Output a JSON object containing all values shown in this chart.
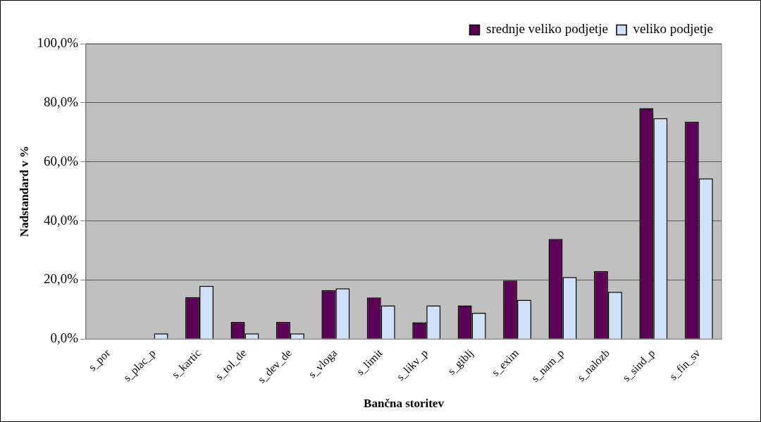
{
  "chart_data": {
    "type": "bar",
    "xlabel": "Bančna storitev",
    "ylabel": "Nadstandard v %",
    "categories": [
      "s_por",
      "s_plac_p",
      "s_kartic",
      "s_tol_de",
      "s_dev_de",
      "s_vloga",
      "s_limit",
      "s_likv_p",
      "s_giblj",
      "s_exim",
      "s_nam_p",
      "s_nalozb",
      "s_sind_p",
      "s_fin_sv"
    ],
    "series": [
      {
        "name": "srednje veliko podjetje",
        "color": "#5c0057",
        "values": [
          0,
          0,
          14.2,
          5.8,
          5.8,
          16.6,
          14.1,
          5.7,
          11.4,
          19.8,
          33.9,
          23.0,
          78.2,
          73.6
        ]
      },
      {
        "name": "veliko podjetje",
        "color": "#d0e0f8",
        "values": [
          0,
          1.9,
          18.0,
          1.9,
          1.9,
          17.2,
          11.4,
          11.4,
          8.9,
          13.3,
          21.0,
          16.0,
          74.8,
          54.4
        ]
      }
    ],
    "ylim": [
      0,
      100
    ],
    "yticks": [
      {
        "value": 0,
        "label": "0,0%"
      },
      {
        "value": 20,
        "label": "20,0%"
      },
      {
        "value": 40,
        "label": "40,0%"
      },
      {
        "value": 60,
        "label": "60,0%"
      },
      {
        "value": 80,
        "label": "80,0%"
      },
      {
        "value": 100,
        "label": "100,0%"
      }
    ],
    "grid": "y",
    "legend": "top right"
  }
}
